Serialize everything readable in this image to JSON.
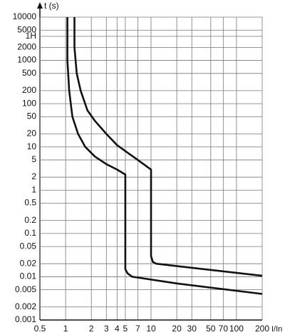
{
  "chart_data": {
    "type": "line",
    "y_label": "t (s)",
    "x_label": "I/In",
    "log_x": true,
    "log_y": true,
    "grid": true,
    "xlim": [
      0.5,
      200
    ],
    "ylim": [
      0.001,
      10000
    ],
    "xticks": [
      0.5,
      1,
      2,
      3,
      4,
      5,
      7,
      10,
      20,
      30,
      50,
      70,
      100,
      200
    ],
    "yticks": [
      10000,
      5000,
      {
        "value": 3600,
        "label": "1H"
      },
      2000,
      1000,
      500,
      200,
      100,
      50,
      20,
      10,
      5,
      2,
      1,
      0.5,
      0.2,
      0.1,
      0.05,
      0.02,
      0.01,
      0.005,
      0.002,
      0.001
    ],
    "series": [
      {
        "color": "#111111",
        "x": [
          1.05,
          1.05,
          1.1,
          1.2,
          1.4,
          1.7,
          2.2,
          3,
          4,
          5,
          5,
          5.3,
          6,
          20,
          200
        ],
        "values": [
          10000,
          1000,
          200,
          50,
          20,
          10,
          6,
          4,
          3,
          2.3,
          0.015,
          0.012,
          0.01,
          0.007,
          0.004
        ]
      },
      {
        "color": "#111111",
        "x": [
          1.27,
          1.27,
          1.35,
          1.5,
          1.8,
          2.2,
          3,
          4,
          5.5,
          7,
          10,
          10,
          10.5,
          11.5,
          200
        ],
        "values": [
          10000,
          2000,
          500,
          200,
          70,
          40,
          20,
          11,
          7,
          5,
          3,
          0.03,
          0.022,
          0.02,
          0.0105
        ]
      }
    ]
  }
}
